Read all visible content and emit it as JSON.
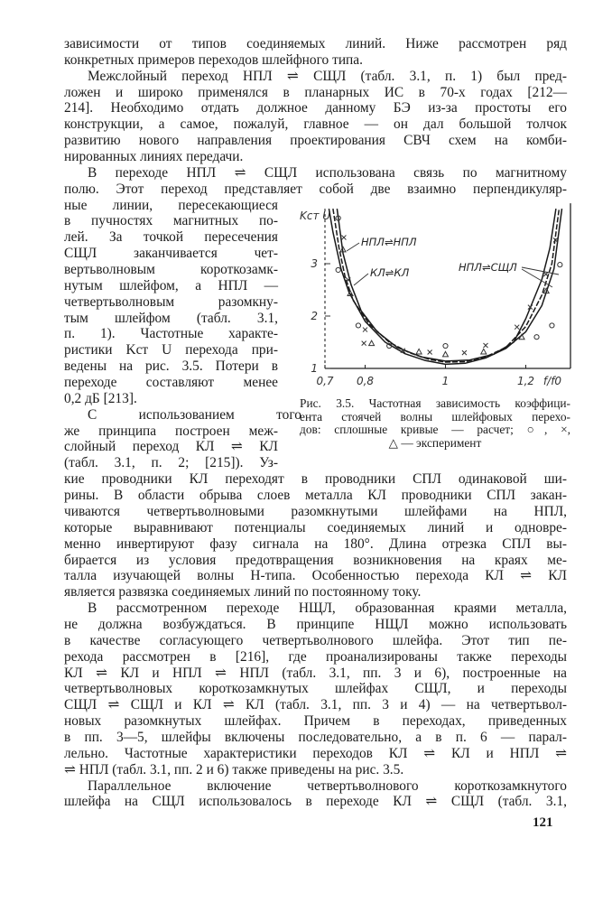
{
  "text": {
    "paragraphs": [
      {
        "indent": false,
        "lines": [
          "зависимости от типов соединяемых линий. Ниже рассмотрен ряд",
          "конкретных примеров переходов шлейфного типа."
        ]
      },
      {
        "indent": true,
        "lines": [
          "Межслойный переход НПЛ ⇌ СЩЛ (табл. 3.1, п. 1) был пред-",
          "ложен и широко применялся в планарных ИС в 70-х годах [212—",
          "214]. Необходимо отдать должное данному БЭ из-за простоты его",
          "конструкции, а самое, пожалуй, главное — он дал большой толчок",
          "развитию нового направления проектирования СВЧ схем на комби-",
          "нированных линиях передачи."
        ]
      },
      {
        "indent": true,
        "lines": [
          "В переходе НПЛ ⇌ СЩЛ использована связь по магнитному",
          "полю. Этот переход представляет собой две взаимно перпендикуляр-",
          "ные линии, пересекающиеся",
          "в пучностях магнитных по-",
          "лей. За точкой пересечения",
          "СЩЛ заканчивается чет-",
          "вертьволновым короткозамк-",
          "нутым шлейфом, а НПЛ —",
          "четвертьволновым разомкну-",
          "тым шлейфом (табл. 3.1,",
          "п. 1). Частотные характе-",
          "ристики Kст U перехода при-",
          "ведены на рис. 3.5. Потери в",
          "переходе составляют менее",
          "0,2 дБ [213]."
        ]
      },
      {
        "indent": true,
        "lines": [
          "С использованием того",
          "же принципа построен меж-",
          "слойный переход КЛ ⇌ КЛ",
          "(табл. 3.1, п. 2; [215]). Уз-",
          "кие проводники КЛ переходят в проводники СПЛ одинаковой ши-",
          "рины. В области обрыва слоев металла КЛ проводники СПЛ закан-",
          "чиваются четвертьволновыми разомкнутыми шлейфами на НПЛ,",
          "которые выравнивают потенциалы соединяемых линий и одновре-",
          "менно инвертируют фазу сигнала на 180°. Длина отрезка СПЛ вы-",
          "бирается из условия предотвращения возникновения на краях ме-",
          "талла изучающей волны H-типа. Особенностью перехода КЛ ⇌ КЛ",
          "является развязка соединяемых линий по постоянному току."
        ]
      },
      {
        "indent": true,
        "lines": [
          "В рассмотренном переходе НЩЛ, образованная краями металла,",
          "не должна возбуждаться. В принципе НЩЛ можно использовать",
          "в качестве согласующего четвертьволнового шлейфа. Этот тип пе-",
          "рехода рассмотрен в [216], где проанализированы также переходы",
          "КЛ ⇌ КЛ и НПЛ ⇌ НПЛ (табл. 3.1, пп. 3 и 6), построенные на",
          "четвертьволновых короткозамкнутых шлейфах СЩЛ, и переходы",
          "СЩЛ ⇌ СЩЛ и КЛ ⇌ КЛ (табл. 3.1, пп. 3 и 4) — на четвертьвол-",
          "новых разомкнутых шлейфах. Причем в переходах, приведенных",
          "в пп. 3—5, шлейфы включены последовательно, а в п. 6 — парал-",
          "лельно. Частотные характеристики переходов КЛ ⇌ КЛ и НПЛ ⇌",
          "⇌ НПЛ (табл. 3.1, пп. 2 и 6) также приведены на рис. 3.5."
        ]
      },
      {
        "indent": true,
        "continues": true,
        "lines": [
          "Параллельное включение четвертьволнового короткозамкнутого",
          "шлейфа на СЩЛ использовалось в переходе КЛ ⇌ СЩЛ (табл. 3.1,"
        ]
      }
    ]
  },
  "figure": {
    "caption_lines": [
      "Рис. 3.5. Частотная зависимость коэффици-",
      "ента стоячей волны шлейфовых перехо-",
      "дов: сплошные кривые — расчет; ○, ×,",
      "△ — эксперимент"
    ]
  },
  "chart_data": {
    "type": "line",
    "ylabel": "Kст U",
    "xlabel": "f/f0",
    "xlim": [
      0.7,
      1.31
    ],
    "ylim": [
      1,
      4.05
    ],
    "xticks": [
      {
        "v": 0.7,
        "label": "0,7"
      },
      {
        "v": 0.8,
        "label": "0,8"
      },
      {
        "v": 1.0,
        "label": "1"
      },
      {
        "v": 1.2,
        "label": "1,2"
      }
    ],
    "yticks": [
      {
        "v": 1,
        "label": "1"
      },
      {
        "v": 2,
        "label": "2"
      },
      {
        "v": 3,
        "label": "3"
      }
    ],
    "grid": false,
    "annotations": [
      "НПЛ⇌НПЛ",
      "КЛ⇌КЛ",
      "НПЛ⇌СЩЛ"
    ],
    "curves": [
      {
        "style": "solid",
        "f": [
          0.71,
          0.72,
          0.74,
          0.76,
          0.8,
          0.85,
          0.9,
          0.95,
          1.0,
          1.05,
          1.1,
          1.15,
          1.2,
          1.24,
          1.27,
          1.29
        ],
        "K": [
          4.05,
          3.6,
          2.9,
          2.45,
          1.9,
          1.5,
          1.28,
          1.15,
          1.08,
          1.1,
          1.2,
          1.38,
          1.7,
          2.2,
          2.9,
          4.05
        ]
      },
      {
        "style": "dashed",
        "f": [
          0.72,
          0.735,
          0.75,
          0.77,
          0.81,
          0.86,
          0.91,
          0.96,
          1.0,
          1.05,
          1.1,
          1.15,
          1.2,
          1.24,
          1.265,
          1.283
        ],
        "K": [
          4.05,
          3.3,
          2.75,
          2.3,
          1.85,
          1.5,
          1.3,
          1.17,
          1.12,
          1.13,
          1.22,
          1.4,
          1.8,
          2.4,
          3.0,
          4.05
        ]
      },
      {
        "style": "solid",
        "f": [
          0.73,
          0.745,
          0.765,
          0.79,
          0.83,
          0.88,
          0.94,
          1.0,
          1.06,
          1.12,
          1.17,
          1.2,
          1.24,
          1.26,
          1.275
        ],
        "K": [
          4.05,
          3.2,
          2.6,
          2.1,
          1.7,
          1.4,
          1.22,
          1.14,
          1.16,
          1.27,
          1.5,
          1.95,
          2.7,
          3.3,
          4.05
        ]
      }
    ],
    "experiment": [
      {
        "m": "circle",
        "f": 0.733,
        "K": 3.87
      },
      {
        "m": "cross",
        "f": 0.747,
        "K": 3.5
      },
      {
        "m": "triangle",
        "f": 0.745,
        "K": 3.27
      },
      {
        "m": "circle",
        "f": 0.733,
        "K": 2.88
      },
      {
        "m": "cross",
        "f": 0.758,
        "K": 2.69
      },
      {
        "m": "triangle",
        "f": 0.763,
        "K": 2.43
      },
      {
        "m": "circle",
        "f": 0.783,
        "K": 1.82
      },
      {
        "m": "cross",
        "f": 0.8,
        "K": 1.74
      },
      {
        "m": "triangle",
        "f": 0.816,
        "K": 1.48
      },
      {
        "m": "cross",
        "f": 0.797,
        "K": 1.48
      },
      {
        "m": "circle",
        "f": 0.86,
        "K": 1.43
      },
      {
        "m": "cross",
        "f": 0.894,
        "K": 1.34
      },
      {
        "m": "triangle",
        "f": 0.934,
        "K": 1.32
      },
      {
        "m": "cross",
        "f": 0.961,
        "K": 1.31
      },
      {
        "m": "triangle",
        "f": 1.0,
        "K": 1.27
      },
      {
        "m": "circle",
        "f": 1.0,
        "K": 1.43
      },
      {
        "m": "cross",
        "f": 1.047,
        "K": 1.3
      },
      {
        "m": "triangle",
        "f": 1.095,
        "K": 1.32
      },
      {
        "m": "cross",
        "f": 1.1,
        "K": 1.44
      },
      {
        "m": "cross",
        "f": 1.178,
        "K": 1.79
      },
      {
        "m": "cross",
        "f": 1.211,
        "K": 2.17
      },
      {
        "m": "triangle",
        "f": 1.19,
        "K": 1.6
      },
      {
        "m": "circle",
        "f": 1.227,
        "K": 1.6
      },
      {
        "m": "circle",
        "f": 1.265,
        "K": 1.82
      },
      {
        "m": "triangle",
        "f": 1.251,
        "K": 2.48
      },
      {
        "m": "cross",
        "f": 1.25,
        "K": 2.8
      },
      {
        "m": "circle",
        "f": 1.285,
        "K": 2.98
      },
      {
        "m": "cross",
        "f": 1.274,
        "K": 3.45
      }
    ]
  },
  "page_number": "121"
}
